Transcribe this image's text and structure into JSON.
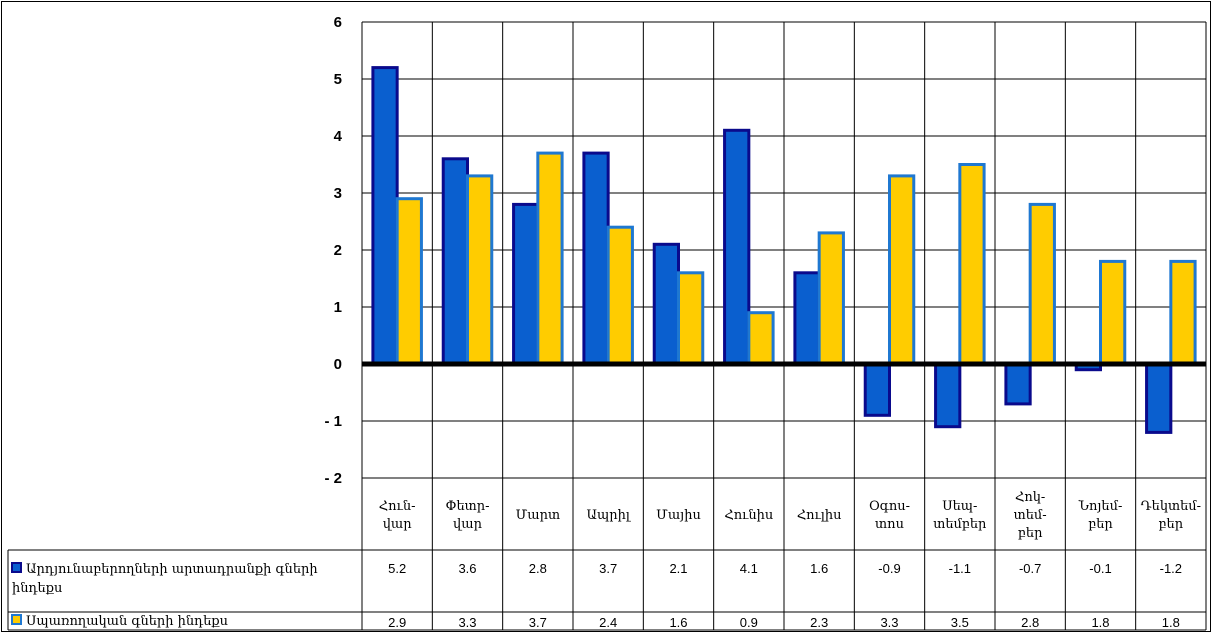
{
  "chart_data": {
    "type": "bar",
    "categories": [
      [
        "Հուն-",
        "վար"
      ],
      [
        "Փետր-",
        "վար"
      ],
      [
        "Մարտ"
      ],
      [
        "Ապրիլ"
      ],
      [
        "Մայիս"
      ],
      [
        "Հունիս"
      ],
      [
        "Հուլիս"
      ],
      [
        "Օգոս-",
        "տոս"
      ],
      [
        "Սեպ-",
        "տեմբեր"
      ],
      [
        "Հոկ-",
        "տեմ-",
        "բեր"
      ],
      [
        "Նոյեմ-",
        "բեր"
      ],
      [
        "Դեկտեմ-",
        "բեր"
      ]
    ],
    "series": [
      {
        "name": [
          "Արդյունաբերողների արտադրանքի գների",
          "ինդեքս"
        ],
        "values": [
          5.2,
          3.6,
          2.8,
          3.7,
          2.1,
          4.1,
          1.6,
          -0.9,
          -1.1,
          -0.7,
          -0.1,
          -1.2
        ],
        "labels": [
          "5.2",
          "3.6",
          "2.8",
          "3.7",
          "2.1",
          "4.1",
          "1.6",
          "-0.9",
          "-1.1",
          "-0.7",
          "-0.1",
          "-1.2"
        ],
        "fill": "#0a5fcf",
        "stroke": "#0a0a8c"
      },
      {
        "name": [
          "Սպառողական գների ինդեքս"
        ],
        "values": [
          2.9,
          3.3,
          3.7,
          2.4,
          1.6,
          0.9,
          2.3,
          3.3,
          3.5,
          2.8,
          1.8,
          1.8
        ],
        "labels": [
          "2.9",
          "3.3",
          "3.7",
          "2.4",
          "1.6",
          "0.9",
          "2.3",
          "3.3",
          "3.5",
          "2.8",
          "1.8",
          "1.8"
        ],
        "fill": "#ffcc00",
        "stroke": "#1f78d1"
      }
    ],
    "ylim": [
      -2,
      6
    ],
    "yticks": [
      "6",
      "5",
      "4",
      "3",
      "2",
      "1",
      "0",
      "- 1",
      "- 2"
    ],
    "grid": true,
    "legend": "data-table-left"
  }
}
